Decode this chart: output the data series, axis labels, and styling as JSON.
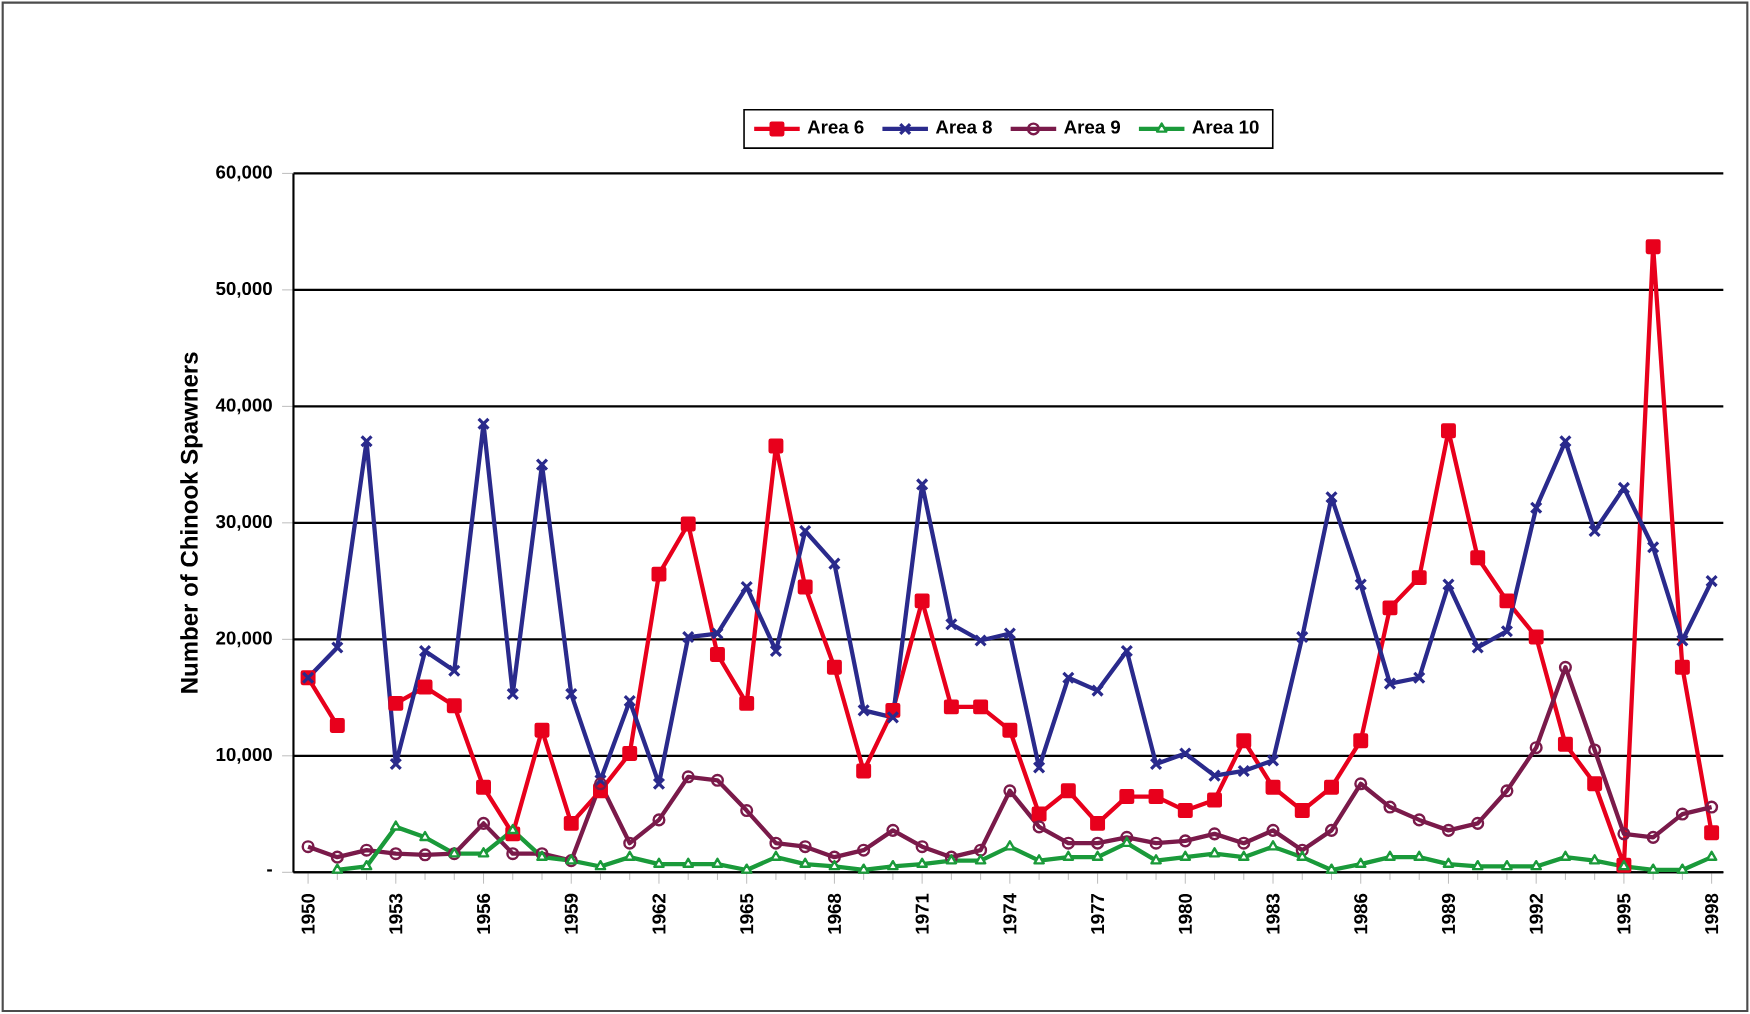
{
  "chart_data": {
    "type": "line",
    "ylabel": "Number of Chinook Spawners",
    "x": [
      1950,
      1951,
      1952,
      1953,
      1954,
      1955,
      1956,
      1957,
      1958,
      1959,
      1960,
      1961,
      1962,
      1963,
      1964,
      1965,
      1966,
      1967,
      1968,
      1969,
      1970,
      1971,
      1972,
      1973,
      1974,
      1975,
      1976,
      1977,
      1978,
      1979,
      1980,
      1981,
      1982,
      1983,
      1984,
      1985,
      1986,
      1987,
      1988,
      1989,
      1990,
      1991,
      1992,
      1993,
      1994,
      1995,
      1996,
      1997,
      1998
    ],
    "series": [
      {
        "name": "Area 6",
        "color": "#e8001c",
        "marker": "square",
        "values": [
          16700,
          12600,
          null,
          14500,
          15900,
          14300,
          7300,
          3300,
          12200,
          4200,
          7000,
          10200,
          25600,
          29900,
          18700,
          14500,
          36600,
          24500,
          17600,
          8700,
          13900,
          23300,
          14200,
          14200,
          12200,
          5000,
          7000,
          4200,
          6500,
          6500,
          5300,
          6200,
          11300,
          7300,
          5300,
          7300,
          11300,
          22700,
          25300,
          37900,
          27000,
          23300,
          20200,
          11000,
          7600,
          600,
          53700,
          17600,
          3400
        ]
      },
      {
        "name": "Area 8",
        "color": "#2a2a8c",
        "marker": "cross",
        "values": [
          16700,
          19300,
          37000,
          9300,
          19000,
          17300,
          38500,
          15300,
          35000,
          15300,
          7900,
          14700,
          7600,
          20200,
          20500,
          24500,
          19000,
          29300,
          26500,
          13900,
          13300,
          33300,
          21300,
          19900,
          20500,
          9000,
          16700,
          15600,
          19000,
          9300,
          10200,
          8300,
          8700,
          9600,
          20200,
          32200,
          24700,
          16200,
          16700,
          24700,
          19300,
          20700,
          31300,
          37000,
          29300,
          33000,
          27900,
          19900,
          25000
        ]
      },
      {
        "name": "Area 9",
        "color": "#7a1a4a",
        "marker": "circle",
        "values": [
          2200,
          1300,
          1900,
          1600,
          1500,
          1600,
          4200,
          1600,
          1600,
          1000,
          7600,
          2500,
          4500,
          8200,
          7900,
          5300,
          2500,
          2200,
          1300,
          1900,
          3600,
          2200,
          1300,
          1900,
          7000,
          3900,
          2500,
          2500,
          3000,
          2500,
          2700,
          3300,
          2500,
          3600,
          1900,
          3600,
          7600,
          5600,
          4500,
          3600,
          4200,
          7000,
          10700,
          17600,
          10500,
          3300,
          3000,
          5000,
          5600
        ]
      },
      {
        "name": "Area 10",
        "color": "#1a9a3a",
        "marker": "triangle",
        "values": [
          null,
          200,
          500,
          3900,
          3000,
          1600,
          1600,
          3600,
          1300,
          1000,
          500,
          1300,
          700,
          700,
          700,
          200,
          1300,
          700,
          500,
          200,
          500,
          700,
          1000,
          1000,
          2200,
          1000,
          1300,
          1300,
          2500,
          1000,
          1300,
          1600,
          1300,
          2200,
          1300,
          200,
          700,
          1300,
          1300,
          700,
          500,
          500,
          500,
          1300,
          1000,
          500,
          200,
          200,
          1300
        ]
      }
    ],
    "xlim": [
      1949.5,
      1998.4
    ],
    "xticks": [
      1950,
      1953,
      1956,
      1959,
      1962,
      1965,
      1968,
      1971,
      1974,
      1977,
      1980,
      1983,
      1986,
      1989,
      1992,
      1995,
      1998
    ],
    "ylim": [
      0,
      60000
    ],
    "yticks": [
      {
        "value": 0,
        "label": "-"
      },
      {
        "value": 10000,
        "label": "10,000"
      },
      {
        "value": 20000,
        "label": "20,000"
      },
      {
        "value": 30000,
        "label": "30,000"
      },
      {
        "value": 40000,
        "label": "40,000"
      },
      {
        "value": 50000,
        "label": "50,000"
      },
      {
        "value": 60000,
        "label": "60,000"
      }
    ],
    "grid": "y",
    "legend": "top",
    "line_style": "solid"
  }
}
